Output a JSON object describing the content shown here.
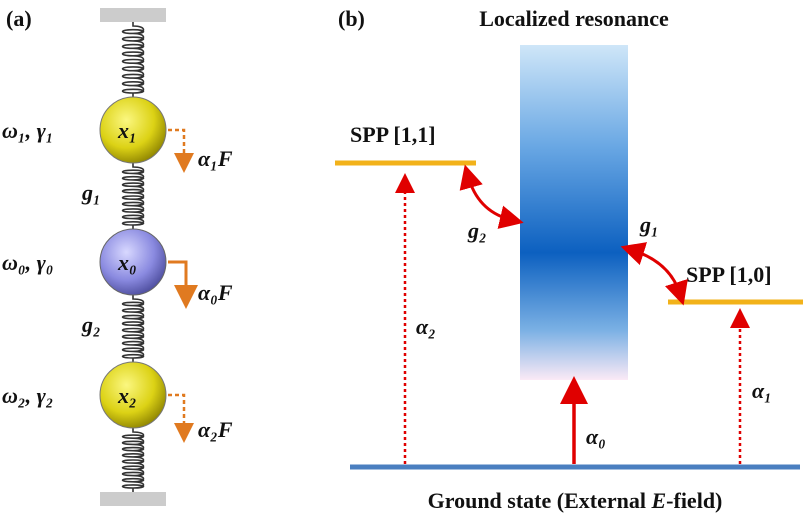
{
  "panel_a": {
    "label": "(a)",
    "masses": [
      {
        "params": "ω₁, γ₁",
        "name": "x₁",
        "force": "α₁F"
      },
      {
        "params": "ω₀, γ₀",
        "name": "x₀",
        "force": "α₀F"
      },
      {
        "params": "ω₂, γ₂",
        "name": "x₂",
        "force": "α₂F"
      }
    ],
    "couplings": [
      "g₁",
      "g₂"
    ]
  },
  "panel_b": {
    "label": "(b)",
    "resonance": "Localized resonance",
    "spp_11": "SPP [1,1]",
    "spp_10": "SPP [1,0]",
    "ground": [
      "Ground state (External ",
      "E",
      "-field)"
    ],
    "couplings": [
      "g₂",
      "g₁"
    ],
    "excitations": [
      "α₂",
      "α₀",
      "α₁"
    ]
  }
}
